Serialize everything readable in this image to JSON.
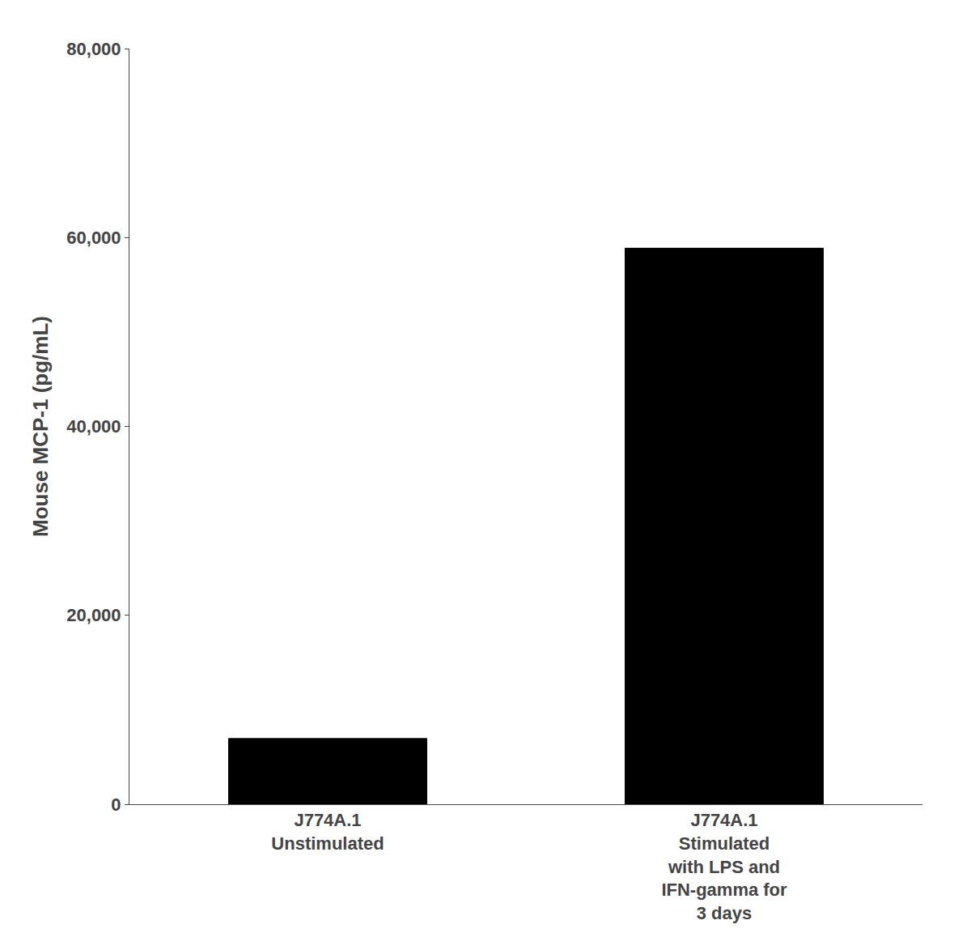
{
  "chart_data": {
    "type": "bar",
    "categories": [
      "J774A.1\nUnstimulated",
      "J774A.1\nStimulated\nwith LPS and\nIFN-gamma for\n3 days"
    ],
    "values": [
      6956.6,
      58869.9
    ],
    "color": "#000000",
    "ylabel": "Mouse MCP-1 (pg/mL)",
    "ylim": [
      0,
      80000
    ],
    "yticks": [
      0,
      {
        "value": 20000,
        "label": "20,000"
      },
      {
        "value": 40000,
        "label": "40,000"
      },
      {
        "value": 60000,
        "label": "60,000"
      },
      {
        "value": 80000,
        "label": "80,000"
      }
    ],
    "grid": false
  }
}
